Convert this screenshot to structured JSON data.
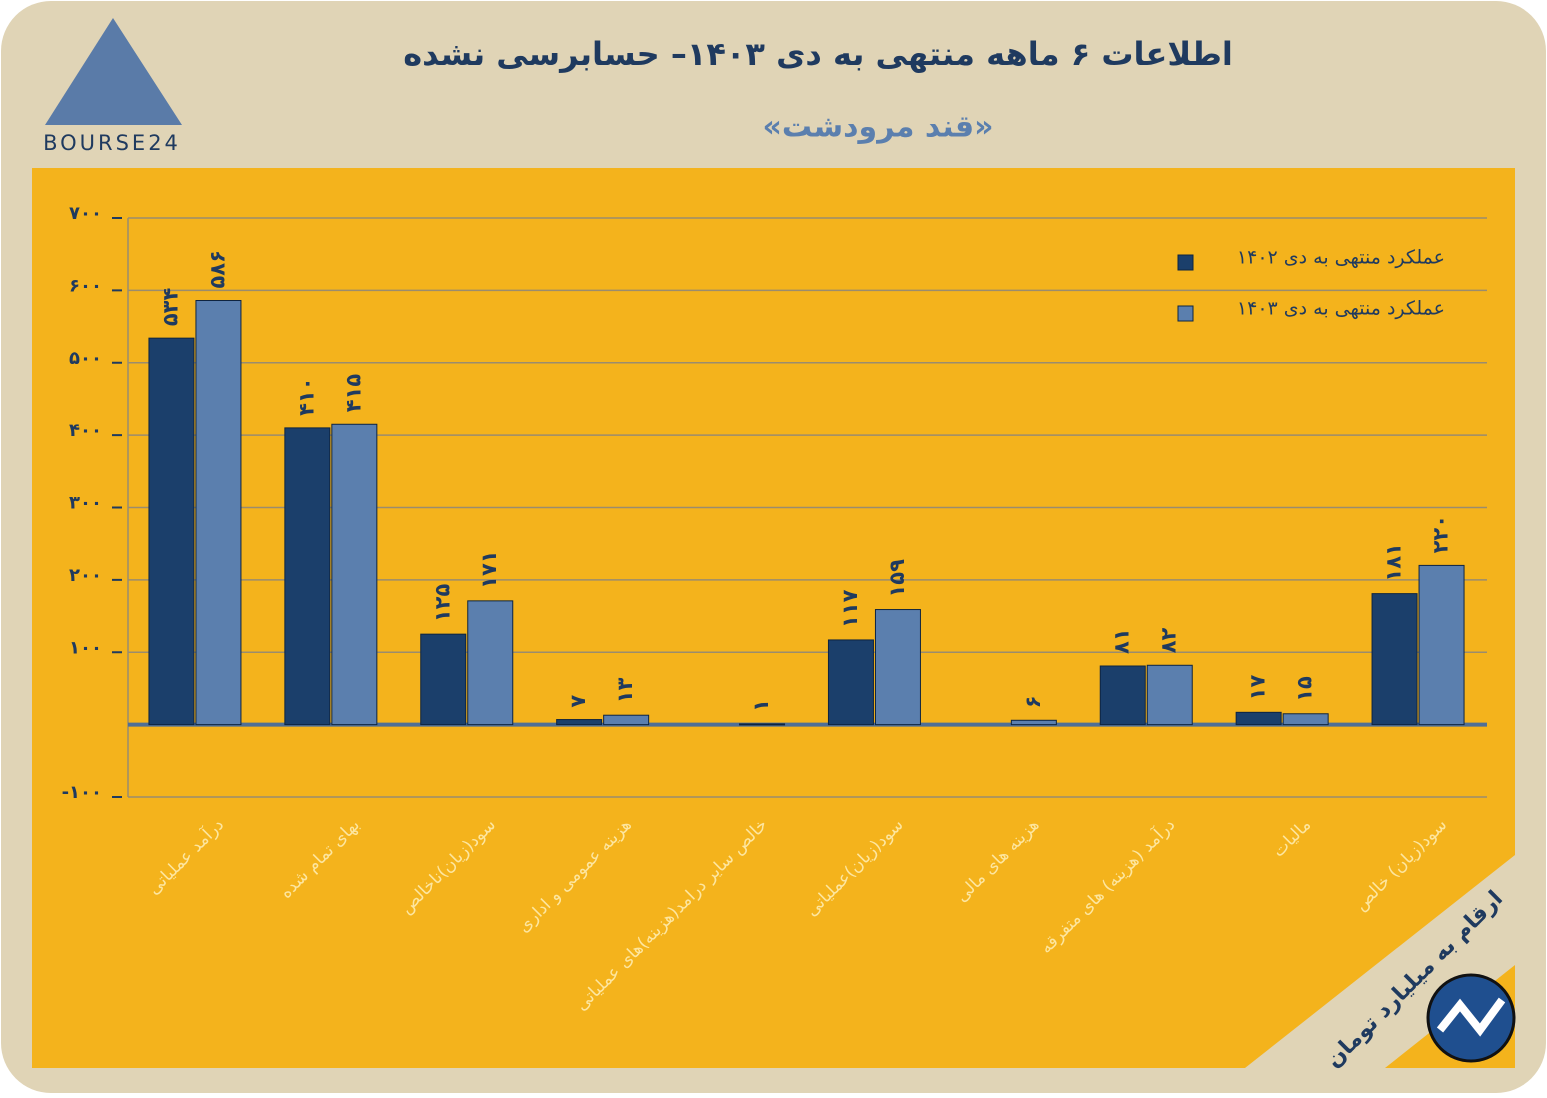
{
  "logo": "BOURSE24",
  "chart_data": {
    "type": "bar",
    "title": "اطلاعات ۶ ماهه منتهی به دی ۱۴۰۳– حسابرسی نشده",
    "subtitle": "«قند مرودشت»",
    "note": "ارقام به میلیارد تومان",
    "categories": [
      "درآمد عملیاتی",
      "بهای تمام شده",
      "سود(زیان)ناخالص",
      "هزینه عمومی و اداری",
      "خالص سایر درامد(هزینه)های عملیاتی",
      "سود(زیان)عملیاتی",
      "هزینه های مالی",
      "درآمد (هزینه) های متفرقه",
      "مالیات",
      "سود(زیان) خالص"
    ],
    "series": [
      {
        "name": "عملکرد منتهی به دی ۱۴۰۲",
        "color": "#1b3f6b",
        "values": [
          534,
          410,
          125,
          7,
          null,
          117,
          null,
          81,
          17,
          181
        ],
        "value_labels": [
          "۵۳۴",
          "۴۱۰",
          "۱۲۵",
          "۷",
          null,
          "۱۱۷",
          null,
          "۸۱",
          "۱۷",
          "۱۸۱"
        ]
      },
      {
        "name": "عملکرد منتهی به دی ۱۴۰۳",
        "color": "#5b7fae",
        "values": [
          586,
          415,
          171,
          13,
          1,
          159,
          6,
          82,
          15,
          220
        ],
        "value_labels": [
          "۵۸۶",
          "۴۱۵",
          "۱۷۱",
          "۱۳",
          "۱",
          "۱۵۹",
          "۶",
          "۸۲",
          "۱۵",
          "۲۲۰"
        ]
      }
    ],
    "ylim": [
      -100,
      700
    ],
    "yticks": [
      {
        "value": -100,
        "label": "-۱۰۰"
      },
      {
        "value": 100,
        "label": "۱۰۰"
      },
      {
        "value": 200,
        "label": "۲۰۰"
      },
      {
        "value": 300,
        "label": "۳۰۰"
      },
      {
        "value": 400,
        "label": "۴۰۰"
      },
      {
        "value": 500,
        "label": "۵۰۰"
      },
      {
        "value": 600,
        "label": "۶۰۰"
      },
      {
        "value": 700,
        "label": "۷۰۰"
      }
    ],
    "grid": true,
    "legend": "top-right"
  }
}
